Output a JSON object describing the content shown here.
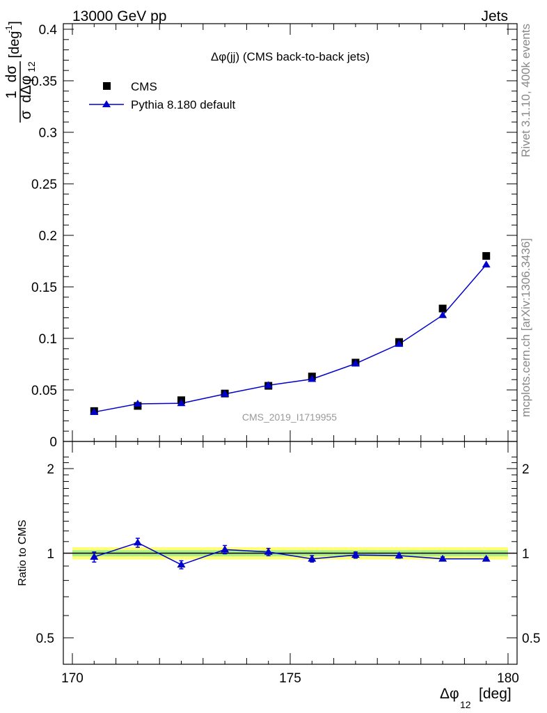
{
  "header": {
    "left": "13000 GeV pp",
    "right": "Jets"
  },
  "side": {
    "rivet": "Rivet 3.1.10,  400k events",
    "mcplots": "mcplots.cern.ch [arXiv:1306.3436]"
  },
  "watermark": "CMS_2019_I1719955",
  "axis_text": {
    "ylabel_top_num": "1",
    "ylabel_top_num2": "dσ",
    "ylabel_top_den": "σ",
    "ylabel_top_den2": "dΔφ",
    "ylabel_top_sub": "12",
    "ylabel_top_unit": "[deg",
    "ylabel_top_unit_exp": "-1",
    "ylabel_top_unit_close": "]",
    "ylabel_ratio": "Ratio to CMS",
    "xlabel": "Δφ",
    "xlabel_sub": "12",
    "xlabel_unit": "[deg]"
  },
  "colors": {
    "data": "#000000",
    "mc": "#0000cc",
    "band_yellow": "#ffff77",
    "band_green": "#aaee88"
  },
  "chart_data": [
    {
      "type": "scatter",
      "title": "Δφ(jj) (CMS back-to-back jets)",
      "xlabel": "Δφ12 [deg]",
      "ylabel": "1/σ dσ/dΔφ12 [deg^-1]",
      "xlim": [
        170,
        180
      ],
      "ylim": [
        0,
        0.41
      ],
      "y_ticks": [
        "0",
        "0.05",
        "0.1",
        "0.15",
        "0.2",
        "0.25",
        "0.3",
        "0.35",
        "0.4"
      ],
      "y_tick_values": [
        0,
        0.05,
        0.1,
        0.15,
        0.2,
        0.25,
        0.3,
        0.35,
        0.4
      ],
      "legend_position": "top-left",
      "series": [
        {
          "name": "CMS",
          "marker": "square",
          "x": [
            170.5,
            171.5,
            172.5,
            173.5,
            174.5,
            175.5,
            176.5,
            177.5,
            178.5,
            179.5
          ],
          "y": [
            0.0295,
            0.0345,
            0.04,
            0.0465,
            0.054,
            0.063,
            0.0765,
            0.0965,
            0.129,
            0.18
          ]
        },
        {
          "name": "Pythia 8.180 default",
          "marker": "triangle",
          "x": [
            170.5,
            171.5,
            172.5,
            173.5,
            174.5,
            175.5,
            176.5,
            177.5,
            178.5,
            179.5
          ],
          "y": [
            0.0285,
            0.0365,
            0.037,
            0.046,
            0.0545,
            0.0605,
            0.0755,
            0.0945,
            0.1225,
            0.1715
          ]
        }
      ]
    },
    {
      "type": "line",
      "xlabel": "Δφ12 [deg]",
      "ylabel": "Ratio to CMS",
      "xlim": [
        170,
        180
      ],
      "ylim": [
        0.4,
        2.3
      ],
      "log_y": true,
      "y_ticks": [
        "0.5",
        "1",
        "2"
      ],
      "y_tick_values": [
        0.5,
        1,
        2
      ],
      "x_ticks": [
        "170",
        "175",
        "180"
      ],
      "x_tick_values": [
        170,
        175,
        180
      ],
      "series": [
        {
          "name": "Pythia 8.180 default",
          "x": [
            170.5,
            171.5,
            172.5,
            173.5,
            174.5,
            175.5,
            176.5,
            177.5,
            178.5,
            179.5
          ],
          "y": [
            0.97,
            1.09,
            0.91,
            1.03,
            1.01,
            0.955,
            0.985,
            0.98,
            0.955,
            0.955
          ],
          "err": [
            0.04,
            0.04,
            0.03,
            0.035,
            0.03,
            0.025,
            0.025,
            0.02,
            0.015,
            0.012
          ]
        }
      ],
      "band_green": [
        0.025,
        0.025,
        0.025,
        0.025,
        0.025,
        0.025,
        0.025,
        0.025,
        0.025,
        0.025
      ],
      "band_yellow": [
        0.05,
        0.05,
        0.05,
        0.05,
        0.05,
        0.05,
        0.05,
        0.05,
        0.05,
        0.05
      ]
    }
  ]
}
